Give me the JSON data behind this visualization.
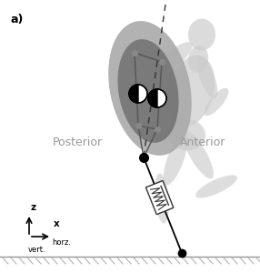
{
  "bg_color": "#ffffff",
  "shadow_color": "#cccccc",
  "torso_outer_color": "#aaaaaa",
  "torso_inner_color": "#777777",
  "node_color": "#888888",
  "line_color": "#555555",
  "dashed_color": "#333333",
  "ground_color": "#aaaaaa",
  "label_a": "a)",
  "label_posterior": "Posterior",
  "label_anterior": "Anterior",
  "label_z": "z",
  "label_vert": "vert.",
  "label_x": "x",
  "label_horz": "horz.",
  "figsize": [
    2.86,
    3.0
  ],
  "dpi": 100
}
